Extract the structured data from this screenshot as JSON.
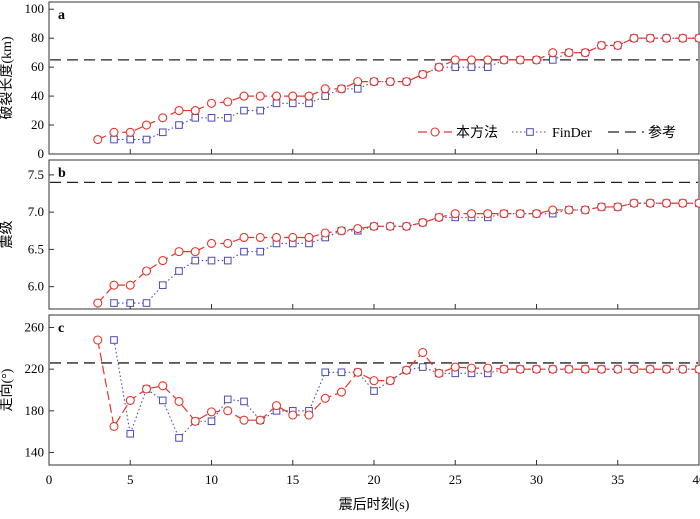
{
  "x_axis": {
    "label": "震后时刻(s)",
    "lim": [
      0,
      40
    ],
    "ticks": [
      0,
      5,
      10,
      15,
      20,
      25,
      30,
      35,
      40
    ]
  },
  "legend": {
    "items": [
      "本方法",
      "FinDer",
      "参考"
    ],
    "placement": "bottom-right of panel a"
  },
  "colors": {
    "method": "#e8352a",
    "finder": "#4b4ab8",
    "reference": "#222222"
  },
  "chart_data": [
    {
      "panel": "a",
      "type": "line",
      "ylabel": "破裂长度(km)",
      "ylim": [
        0,
        105
      ],
      "yticks": [
        0,
        20,
        40,
        60,
        80,
        100
      ],
      "reference": 65,
      "series": [
        {
          "name": "本方法",
          "x": [
            3,
            4,
            5,
            6,
            7,
            8,
            9,
            10,
            11,
            12,
            13,
            14,
            15,
            16,
            17,
            18,
            19,
            20,
            21,
            22,
            23,
            24,
            25,
            26,
            27,
            28,
            29,
            30,
            31,
            32,
            33,
            34,
            35,
            36,
            37,
            38,
            39,
            40
          ],
          "y": [
            10,
            15,
            15,
            20,
            25,
            30,
            30,
            35,
            36,
            40,
            40,
            40,
            40,
            40,
            45,
            45,
            50,
            50,
            50,
            50,
            55,
            60,
            65,
            65,
            65,
            65,
            65,
            65,
            70,
            70,
            70,
            75,
            75,
            80,
            80,
            80,
            80,
            80
          ]
        },
        {
          "name": "FinDer",
          "x": [
            4,
            5,
            6,
            7,
            8,
            9,
            10,
            11,
            12,
            13,
            14,
            15,
            16,
            17,
            18,
            19,
            20,
            21,
            22,
            23,
            24,
            25,
            26,
            27,
            28,
            29,
            30,
            31,
            32,
            33,
            34,
            35,
            36,
            37,
            38,
            39,
            40
          ],
          "y": [
            10,
            10,
            10,
            15,
            20,
            25,
            25,
            25,
            30,
            30,
            35,
            35,
            35,
            40,
            45,
            45,
            50,
            50,
            50,
            55,
            60,
            60,
            60,
            60,
            65,
            65,
            65,
            65,
            70,
            70,
            75,
            75,
            80,
            80,
            80,
            80,
            80
          ]
        }
      ]
    },
    {
      "panel": "b",
      "type": "line",
      "ylabel": "震级",
      "ylim": [
        5.7,
        7.7
      ],
      "yticks": [
        6.0,
        6.5,
        7.0,
        7.5
      ],
      "reference": 7.4,
      "series": [
        {
          "name": "本方法",
          "x": [
            3,
            4,
            5,
            6,
            7,
            8,
            9,
            10,
            11,
            12,
            13,
            14,
            15,
            16,
            17,
            18,
            19,
            20,
            21,
            22,
            23,
            24,
            25,
            26,
            27,
            28,
            29,
            30,
            31,
            32,
            33,
            34,
            35,
            36,
            37,
            38,
            39,
            40
          ],
          "y": [
            5.78,
            6.02,
            6.02,
            6.21,
            6.35,
            6.47,
            6.47,
            6.58,
            6.58,
            6.66,
            6.66,
            6.66,
            6.66,
            6.66,
            6.72,
            6.75,
            6.78,
            6.81,
            6.81,
            6.81,
            6.86,
            6.93,
            6.98,
            6.98,
            6.98,
            6.98,
            6.98,
            6.98,
            7.03,
            7.03,
            7.03,
            7.07,
            7.07,
            7.12,
            7.12,
            7.12,
            7.12,
            7.12
          ]
        },
        {
          "name": "FinDer",
          "x": [
            4,
            5,
            6,
            7,
            8,
            9,
            10,
            11,
            12,
            13,
            14,
            15,
            16,
            17,
            18,
            19,
            20,
            21,
            22,
            23,
            24,
            25,
            26,
            27,
            28,
            29,
            30,
            31,
            32,
            33,
            34,
            35,
            36,
            37,
            38,
            39,
            40
          ],
          "y": [
            5.78,
            5.78,
            5.78,
            6.02,
            6.21,
            6.35,
            6.35,
            6.35,
            6.47,
            6.47,
            6.58,
            6.58,
            6.58,
            6.66,
            6.75,
            6.75,
            6.81,
            6.81,
            6.81,
            6.86,
            6.93,
            6.93,
            6.93,
            6.93,
            6.98,
            6.98,
            6.98,
            6.98,
            7.03,
            7.03,
            7.07,
            7.07,
            7.12,
            7.12,
            7.12,
            7.12,
            7.12
          ]
        }
      ]
    },
    {
      "panel": "c",
      "type": "line",
      "ylabel": "走向(°)",
      "ylim": [
        128,
        272
      ],
      "yticks": [
        140,
        180,
        220,
        260
      ],
      "reference": 226,
      "series": [
        {
          "name": "本方法",
          "x": [
            3,
            4,
            5,
            6,
            7,
            8,
            9,
            10,
            11,
            12,
            13,
            14,
            15,
            16,
            17,
            18,
            19,
            20,
            21,
            22,
            23,
            24,
            25,
            26,
            27,
            28,
            29,
            30,
            31,
            32,
            33,
            34,
            35,
            36,
            37,
            38,
            39,
            40
          ],
          "y": [
            248,
            165,
            190,
            201,
            204,
            189,
            170,
            179,
            180,
            171,
            171,
            185,
            176,
            176,
            192,
            198,
            217,
            209,
            209,
            219,
            236,
            216,
            222,
            221,
            221,
            220,
            220,
            220,
            220,
            220,
            220,
            220,
            220,
            220,
            220,
            220,
            220,
            220
          ]
        },
        {
          "name": "FinDer",
          "x": [
            4,
            5,
            6,
            7,
            8,
            9,
            10,
            11,
            12,
            13,
            14,
            15,
            16,
            17,
            18,
            19,
            20,
            21,
            22,
            23,
            24,
            25,
            26,
            27,
            28,
            29,
            30,
            31,
            32,
            33,
            34,
            35,
            36,
            37,
            38,
            39,
            40
          ],
          "y": [
            248,
            158,
            201,
            190,
            154,
            170,
            170,
            191,
            189,
            171,
            180,
            180,
            180,
            217,
            217,
            217,
            199,
            209,
            219,
            222,
            216,
            216,
            216,
            216,
            220,
            220,
            220,
            220,
            220,
            220,
            220,
            220,
            220,
            220,
            220,
            220,
            220
          ]
        }
      ]
    }
  ]
}
